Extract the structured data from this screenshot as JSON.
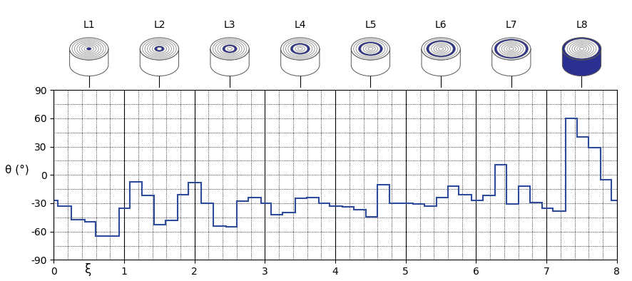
{
  "chart_data": {
    "type": "step",
    "x_label": "ξ",
    "y_label": "θ (°)",
    "layer_labels": [
      "L1",
      "L2",
      "L3",
      "L4",
      "L5",
      "L6",
      "L7",
      "L8"
    ],
    "bins": [
      0,
      0.06,
      0.25,
      0.44,
      0.59,
      0.93,
      1.08,
      1.25,
      1.42,
      1.59,
      1.76,
      1.91,
      2.09,
      2.27,
      2.45,
      2.6,
      2.76,
      2.94,
      3.09,
      3.25,
      3.43,
      3.59,
      3.77,
      3.92,
      4.1,
      4.26,
      4.43,
      4.6,
      4.77,
      5.1,
      5.27,
      5.44,
      5.6,
      5.75,
      5.93,
      6.1,
      6.27,
      6.43,
      6.6,
      6.77,
      6.94,
      7.09,
      7.27,
      7.43,
      7.6,
      7.77,
      7.92,
      8
    ],
    "values": [
      -27,
      -33,
      -47,
      -50,
      -65,
      -35,
      -7,
      -22,
      -53,
      -48,
      -21,
      -8,
      -30,
      -54,
      -55,
      -28,
      -24,
      -30,
      -42,
      -40,
      -25,
      -24,
      -30,
      -33,
      -34,
      -37,
      -44,
      -10,
      -30,
      -31,
      -33,
      -24,
      -12,
      -21,
      -27,
      -22,
      11,
      -31,
      -12,
      -29,
      -35,
      -38,
      60,
      40,
      29,
      -5,
      -27
    ],
    "color": "#2f4b9c",
    "xlim": [
      0,
      8
    ],
    "xticks": [
      0,
      1,
      2,
      3,
      4,
      5,
      6,
      7,
      8
    ],
    "ylim": [
      -90,
      90
    ],
    "yticks": [
      -90,
      -60,
      -30,
      0,
      30,
      60,
      90
    ],
    "grid": true
  }
}
